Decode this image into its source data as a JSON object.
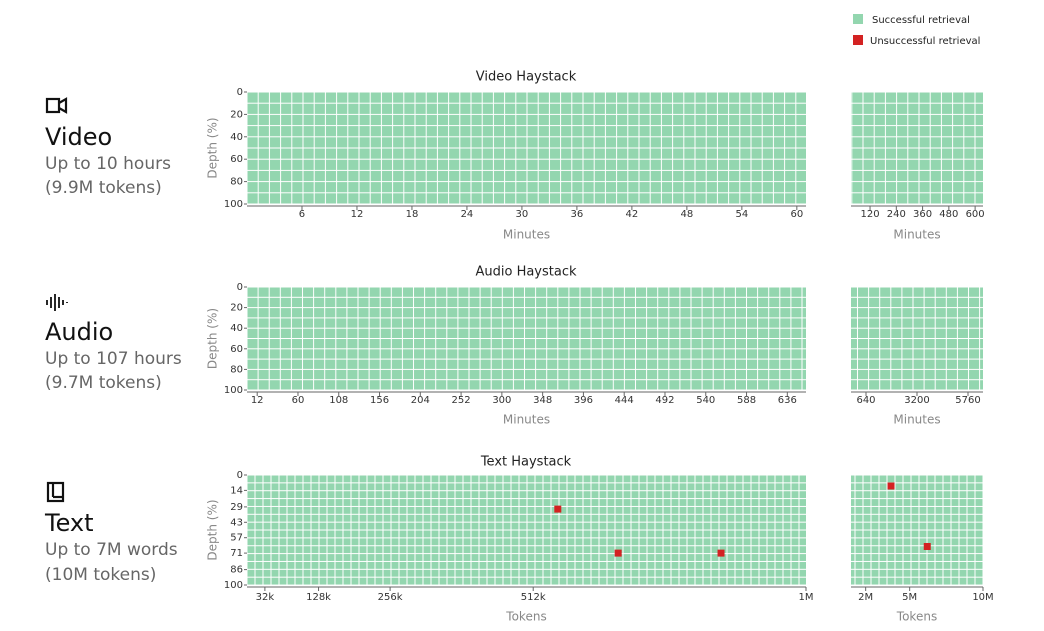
{
  "legend": {
    "success": "Successful retrieval",
    "failure": "Unsuccessful retrieval",
    "success_color": "#93d6af",
    "failure_color": "#d32222"
  },
  "rows": [
    {
      "title": "Video",
      "lines": [
        "Up to 10 hours",
        "(9.9M tokens)"
      ]
    },
    {
      "title": "Audio",
      "lines": [
        "Up to 107 hours",
        "(9.7M tokens)"
      ]
    },
    {
      "title": "Text",
      "lines": [
        "Up to 7M words",
        "(10M tokens)"
      ]
    }
  ],
  "chart_data": [
    {
      "type": "heatmap",
      "title": "Video Haystack",
      "xlabel": "Minutes",
      "ylabel": "Depth (%)",
      "ylim": [
        0,
        100
      ],
      "yticks": [
        0,
        20,
        40,
        60,
        80,
        100
      ],
      "panels": [
        {
          "xlim": [
            0,
            61
          ],
          "xticks": [
            6,
            12,
            18,
            24,
            30,
            36,
            42,
            48,
            54,
            60
          ],
          "failures": {
            "x": [],
            "y": []
          }
        },
        {
          "xlim": [
            33,
            636
          ],
          "xticks": [
            120,
            240,
            360,
            480,
            600
          ],
          "failures": {
            "x": [],
            "y": []
          }
        }
      ]
    },
    {
      "type": "heatmap",
      "title": "Audio Haystack",
      "xlabel": "Minutes",
      "ylabel": "Depth (%)",
      "ylim": [
        0,
        100
      ],
      "yticks": [
        0,
        20,
        40,
        60,
        80,
        100
      ],
      "panels": [
        {
          "xlim": [
            0,
            658
          ],
          "xticks": [
            12,
            60,
            108,
            156,
            204,
            252,
            300,
            348,
            396,
            444,
            492,
            540,
            588,
            636
          ],
          "failures": {
            "x": [],
            "y": []
          }
        },
        {
          "xlim": [
            -113,
            6513
          ],
          "xticks": [
            640,
            3200,
            5760
          ],
          "failures": {
            "x": [],
            "y": []
          }
        }
      ]
    },
    {
      "type": "heatmap",
      "title": "Text Haystack",
      "xlabel": "Tokens",
      "ylabel": "Depth (%)",
      "ylim": [
        0,
        100
      ],
      "yticks": [
        0,
        14,
        29,
        43,
        57,
        71,
        86,
        100
      ],
      "panels": [
        {
          "xlim": [
            0,
            1000000
          ],
          "xticks": [
            {
              "value": 32000,
              "label": "32k"
            },
            {
              "value": 128000,
              "label": "128k"
            },
            {
              "value": 256000,
              "label": "256k"
            },
            {
              "value": 512000,
              "label": "512k"
            },
            {
              "value": 1000000,
              "label": "1M"
            }
          ],
          "failures": {
            "x": [
              556000,
              664000,
              848000
            ],
            "y": [
              31,
              71,
              71
            ]
          }
        },
        {
          "xlim": [
            1000000,
            10000000
          ],
          "xticks": [
            {
              "value": 2000000,
              "label": "2M"
            },
            {
              "value": 5000000,
              "label": "5M"
            },
            {
              "value": 10000000,
              "label": "10M"
            }
          ],
          "failures": {
            "x": [
              3730000,
              6200000
            ],
            "y": [
              10,
              65
            ]
          }
        }
      ]
    }
  ]
}
